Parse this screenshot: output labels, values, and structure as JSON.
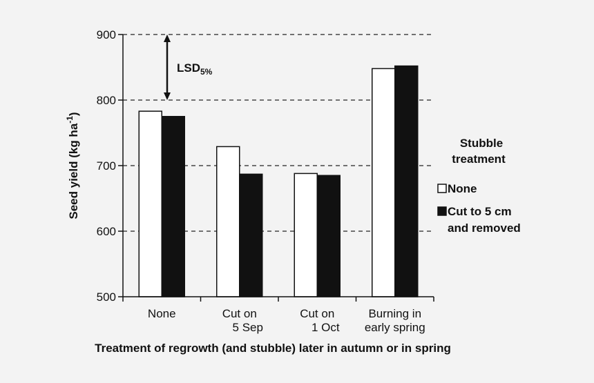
{
  "chart_data": {
    "type": "bar",
    "xlabel": "Treatment of regrowth (and stubble) later in autumn or in spring",
    "ylabel": "Seed yield (kg ha",
    "ylabel_sup": "-1",
    "ylabel_close": ")",
    "ylim": [
      500,
      900
    ],
    "yticks": [
      500,
      600,
      700,
      800,
      900
    ],
    "grid": "dashed horizontal at 600, 700, 800, 900",
    "categories": [
      [
        "None"
      ],
      [
        "Cut on",
        "5 Sep"
      ],
      [
        "Cut on",
        "1 Oct"
      ],
      [
        "Burning in",
        "early spring"
      ]
    ],
    "series": [
      {
        "name": "None",
        "color": "#ffffff",
        "values": [
          783,
          729,
          688,
          848
        ]
      },
      {
        "name": "Cut to 5 cm and removed",
        "color": "#111111",
        "values": [
          775,
          687,
          685,
          852
        ]
      }
    ],
    "annotation": {
      "label": "LSD",
      "subscript": "5%",
      "from": 800,
      "to": 900
    },
    "legend": {
      "title": [
        "Stubble",
        "treatment"
      ],
      "entries": [
        [
          "None"
        ],
        [
          "Cut to 5 cm",
          "and removed"
        ]
      ],
      "placement": "right"
    }
  }
}
